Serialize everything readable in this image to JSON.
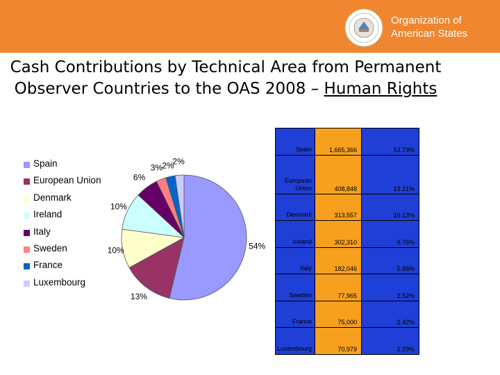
{
  "header": {
    "org_name_line1": "Organization of",
    "org_name_line2": "American States",
    "bg_color": "#f0862f"
  },
  "title": {
    "line1": "Cash Contributions by Technical Area from Permanent",
    "line2_prefix": "Observer Countries to the OAS 2008 –",
    "line2_underlined": "Human Rights"
  },
  "chart_data": {
    "type": "pie",
    "title": "Cash Contributions by Technical Area from Permanent Observer Countries to the OAS 2008 – Human Rights",
    "legend_position": "left",
    "categories": [
      "Spain",
      "European Union",
      "Denmark",
      "Ireland",
      "Italy",
      "Sweden",
      "France",
      "Luxembourg"
    ],
    "values": [
      1665366,
      408848,
      313557,
      302310,
      182046,
      77965,
      75000,
      70979
    ],
    "percent_labels": [
      "54%",
      "13%",
      "10%",
      "10%",
      "6%",
      "3%",
      "2%",
      "2%"
    ],
    "colors": [
      "#9999ff",
      "#993366",
      "#ffffcc",
      "#ccffff",
      "#660066",
      "#ff8080",
      "#0066cc",
      "#ccccff"
    ]
  },
  "table": {
    "rows": [
      {
        "country": "Spain",
        "amount": "1,665,366",
        "percent": "53.79%"
      },
      {
        "country": "European Union",
        "amount": "408,848",
        "percent": "13.21%"
      },
      {
        "country": "Denmark",
        "amount": "313,557",
        "percent": "10.13%"
      },
      {
        "country": "Ireland",
        "amount": "302,310",
        "percent": "9.76%"
      },
      {
        "country": "Italy",
        "amount": "182,046",
        "percent": "5.88%"
      },
      {
        "country": "Sweden",
        "amount": "77,965",
        "percent": "2.52%"
      },
      {
        "country": "France",
        "amount": "75,000",
        "percent": "2.42%"
      },
      {
        "country": "Luxembourg",
        "amount": "70,979",
        "percent": "2.29%"
      }
    ]
  }
}
